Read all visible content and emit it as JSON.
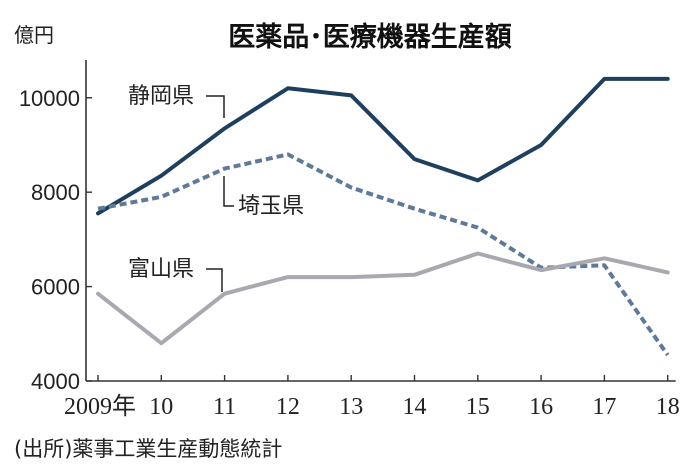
{
  "chart_data": {
    "type": "line",
    "title": "医薬品･医療機器生産額",
    "ylabel": "億円",
    "xlabel": "",
    "categories": [
      "2009年",
      "10",
      "11",
      "12",
      "13",
      "14",
      "15",
      "16",
      "17",
      "18"
    ],
    "ylim": [
      4000,
      10800
    ],
    "yticks": [
      "4000",
      "6000",
      "8000",
      "10000"
    ],
    "grid": false,
    "series": [
      {
        "name": "静岡県",
        "color": "#1f3f5e",
        "style": "solid",
        "values": [
          7550,
          8350,
          9350,
          10200,
          10050,
          8700,
          8250,
          9000,
          10400,
          10400
        ]
      },
      {
        "name": "埼玉県",
        "color": "#5f7a99",
        "style": "dashed",
        "values": [
          7650,
          7900,
          8500,
          8800,
          8100,
          7650,
          7250,
          6400,
          6450,
          4550
        ]
      },
      {
        "name": "富山県",
        "color": "#a8a8b0",
        "style": "solid",
        "values": [
          5850,
          4800,
          5850,
          6200,
          6200,
          6250,
          6700,
          6350,
          6600,
          6300
        ]
      }
    ],
    "source": "(出所)薬事工業生産動態統計"
  }
}
